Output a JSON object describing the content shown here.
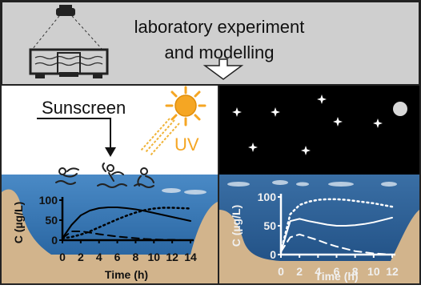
{
  "banner": {
    "line1": "laboratory experiment",
    "line2": "and modelling"
  },
  "day_panel": {
    "sunscreen_label": "Sunscreen",
    "uv_label": "UV"
  },
  "colors": {
    "banner_bg": "#cfcfcf",
    "sky_day": "#ffffff",
    "sky_night": "#000000",
    "water": "#2b6aa8",
    "sand": "#d2b48c",
    "sun": "#f5a623",
    "curve": "#000000",
    "curve_night": "#ffffff"
  },
  "chart_data": [
    {
      "type": "line",
      "panel": "day",
      "xlabel": "Time (h)",
      "ylabel": "C (µg/L)",
      "xlim": [
        0,
        14
      ],
      "ylim": [
        0,
        100
      ],
      "x_ticks": [
        "0",
        "2",
        "4",
        "6",
        "8",
        "10",
        "12",
        "14"
      ],
      "y_ticks": [
        "0",
        "50",
        "100"
      ],
      "series": [
        {
          "style": "solid",
          "x": [
            0,
            1,
            2,
            3,
            4,
            5,
            6,
            7,
            8,
            9,
            10,
            11,
            12,
            13,
            14
          ],
          "y": [
            5,
            38,
            62,
            74,
            80,
            82,
            82,
            80,
            77,
            73,
            68,
            63,
            58,
            53,
            48
          ]
        },
        {
          "style": "dashed",
          "x": [
            0,
            1,
            2,
            3,
            4,
            5,
            6,
            7,
            8,
            9,
            10,
            11,
            12,
            13,
            14
          ],
          "y": [
            5,
            22,
            22,
            19,
            15,
            12,
            9,
            7,
            5,
            3,
            2,
            1,
            1,
            0,
            0
          ]
        },
        {
          "style": "dotted",
          "x": [
            0,
            1,
            2,
            3,
            4,
            5,
            6,
            7,
            8,
            9,
            10,
            11,
            12,
            13,
            14
          ],
          "y": [
            5,
            8,
            14,
            22,
            32,
            42,
            52,
            61,
            69,
            75,
            79,
            81,
            81,
            80,
            79
          ]
        }
      ]
    },
    {
      "type": "line",
      "panel": "night",
      "xlabel": "Time (h)",
      "ylabel": "C (µg/L)",
      "xlim": [
        0,
        12
      ],
      "ylim": [
        0,
        100
      ],
      "x_ticks": [
        "0",
        "2",
        "4",
        "6",
        "8",
        "10",
        "12"
      ],
      "y_ticks": [
        "0",
        "50",
        "100"
      ],
      "series": [
        {
          "style": "dotted",
          "x": [
            0,
            1,
            2,
            3,
            4,
            5,
            6,
            7,
            8,
            9,
            10,
            11,
            12
          ],
          "y": [
            5,
            70,
            86,
            92,
            95,
            96,
            96,
            95,
            93,
            91,
            89,
            86,
            83
          ]
        },
        {
          "style": "solid",
          "x": [
            0,
            1,
            2,
            3,
            4,
            5,
            6,
            7,
            8,
            9,
            10,
            11,
            12
          ],
          "y": [
            5,
            58,
            62,
            58,
            55,
            52,
            50,
            50,
            51,
            53,
            56,
            60,
            64
          ]
        },
        {
          "style": "dashed",
          "x": [
            0,
            1,
            2,
            3,
            4,
            5,
            6,
            7,
            8,
            9,
            10,
            11,
            12
          ],
          "y": [
            5,
            30,
            35,
            30,
            25,
            19,
            14,
            10,
            6,
            4,
            2,
            1,
            0
          ]
        }
      ]
    }
  ]
}
